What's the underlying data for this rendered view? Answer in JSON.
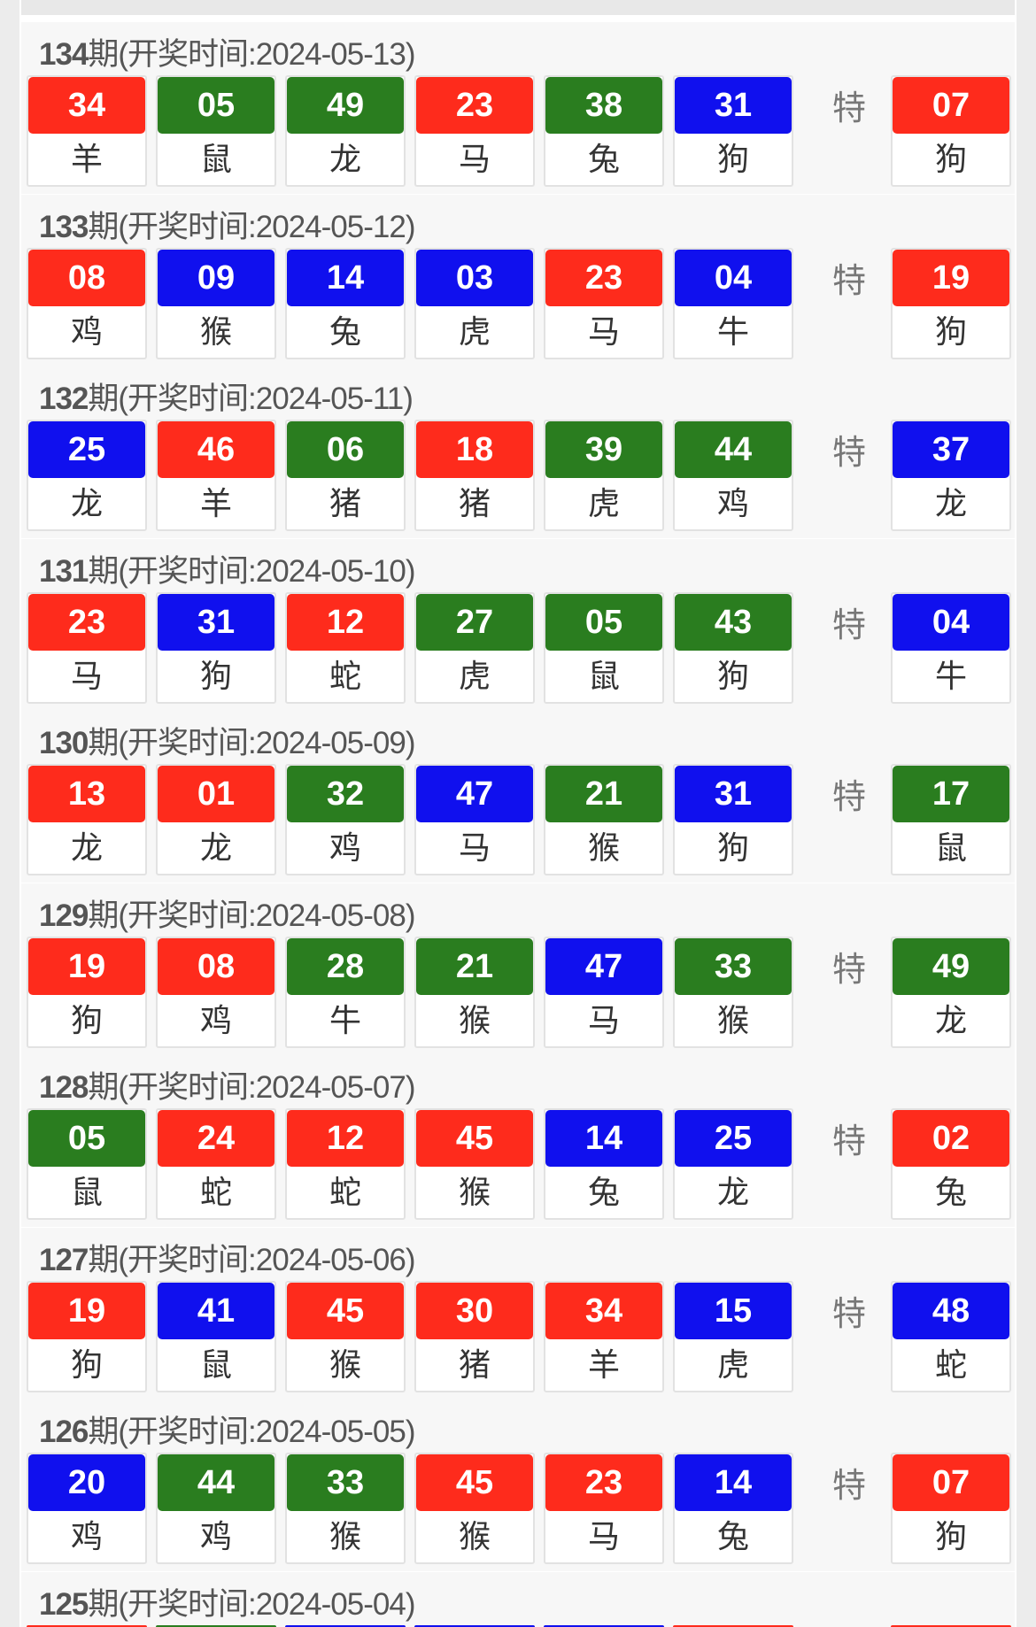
{
  "colors": {
    "red": "#fe2b1c",
    "green": "#2a7d1f",
    "blue": "#1010ee"
  },
  "special_label": "特",
  "draws": [
    {
      "period": "134",
      "label": "期(开奖时间:2024-05-13)",
      "balls": [
        [
          "34",
          "羊",
          "red"
        ],
        [
          "05",
          "鼠",
          "green"
        ],
        [
          "49",
          "龙",
          "green"
        ],
        [
          "23",
          "马",
          "red"
        ],
        [
          "38",
          "兔",
          "green"
        ],
        [
          "31",
          "狗",
          "blue"
        ]
      ],
      "special": [
        "07",
        "狗",
        "red"
      ]
    },
    {
      "period": "133",
      "label": "期(开奖时间:2024-05-12)",
      "balls": [
        [
          "08",
          "鸡",
          "red"
        ],
        [
          "09",
          "猴",
          "blue"
        ],
        [
          "14",
          "兔",
          "blue"
        ],
        [
          "03",
          "虎",
          "blue"
        ],
        [
          "23",
          "马",
          "red"
        ],
        [
          "04",
          "牛",
          "blue"
        ]
      ],
      "special": [
        "19",
        "狗",
        "red"
      ]
    },
    {
      "period": "132",
      "label": "期(开奖时间:2024-05-11)",
      "balls": [
        [
          "25",
          "龙",
          "blue"
        ],
        [
          "46",
          "羊",
          "red"
        ],
        [
          "06",
          "猪",
          "green"
        ],
        [
          "18",
          "猪",
          "red"
        ],
        [
          "39",
          "虎",
          "green"
        ],
        [
          "44",
          "鸡",
          "green"
        ]
      ],
      "special": [
        "37",
        "龙",
        "blue"
      ]
    },
    {
      "period": "131",
      "label": "期(开奖时间:2024-05-10)",
      "balls": [
        [
          "23",
          "马",
          "red"
        ],
        [
          "31",
          "狗",
          "blue"
        ],
        [
          "12",
          "蛇",
          "red"
        ],
        [
          "27",
          "虎",
          "green"
        ],
        [
          "05",
          "鼠",
          "green"
        ],
        [
          "43",
          "狗",
          "green"
        ]
      ],
      "special": [
        "04",
        "牛",
        "blue"
      ]
    },
    {
      "period": "130",
      "label": "期(开奖时间:2024-05-09)",
      "balls": [
        [
          "13",
          "龙",
          "red"
        ],
        [
          "01",
          "龙",
          "red"
        ],
        [
          "32",
          "鸡",
          "green"
        ],
        [
          "47",
          "马",
          "blue"
        ],
        [
          "21",
          "猴",
          "green"
        ],
        [
          "31",
          "狗",
          "blue"
        ]
      ],
      "special": [
        "17",
        "鼠",
        "green"
      ]
    },
    {
      "period": "129",
      "label": "期(开奖时间:2024-05-08)",
      "balls": [
        [
          "19",
          "狗",
          "red"
        ],
        [
          "08",
          "鸡",
          "red"
        ],
        [
          "28",
          "牛",
          "green"
        ],
        [
          "21",
          "猴",
          "green"
        ],
        [
          "47",
          "马",
          "blue"
        ],
        [
          "33",
          "猴",
          "green"
        ]
      ],
      "special": [
        "49",
        "龙",
        "green"
      ]
    },
    {
      "period": "128",
      "label": "期(开奖时间:2024-05-07)",
      "balls": [
        [
          "05",
          "鼠",
          "green"
        ],
        [
          "24",
          "蛇",
          "red"
        ],
        [
          "12",
          "蛇",
          "red"
        ],
        [
          "45",
          "猴",
          "red"
        ],
        [
          "14",
          "兔",
          "blue"
        ],
        [
          "25",
          "龙",
          "blue"
        ]
      ],
      "special": [
        "02",
        "兔",
        "red"
      ]
    },
    {
      "period": "127",
      "label": "期(开奖时间:2024-05-06)",
      "balls": [
        [
          "19",
          "狗",
          "red"
        ],
        [
          "41",
          "鼠",
          "blue"
        ],
        [
          "45",
          "猴",
          "red"
        ],
        [
          "30",
          "猪",
          "red"
        ],
        [
          "34",
          "羊",
          "red"
        ],
        [
          "15",
          "虎",
          "blue"
        ]
      ],
      "special": [
        "48",
        "蛇",
        "blue"
      ]
    },
    {
      "period": "126",
      "label": "期(开奖时间:2024-05-05)",
      "balls": [
        [
          "20",
          "鸡",
          "blue"
        ],
        [
          "44",
          "鸡",
          "green"
        ],
        [
          "33",
          "猴",
          "green"
        ],
        [
          "45",
          "猴",
          "red"
        ],
        [
          "23",
          "马",
          "red"
        ],
        [
          "14",
          "兔",
          "blue"
        ]
      ],
      "special": [
        "07",
        "狗",
        "red"
      ]
    },
    {
      "period": "125",
      "label": "期(开奖时间:2024-05-04)",
      "balls": [
        [
          "",
          "",
          "red"
        ],
        [
          "",
          "",
          "green"
        ],
        [
          "",
          "",
          "blue"
        ],
        [
          "",
          "",
          "blue"
        ],
        [
          "",
          "",
          "blue"
        ],
        [
          "",
          "",
          "red"
        ]
      ],
      "special": [
        "",
        "",
        "red"
      ]
    }
  ]
}
